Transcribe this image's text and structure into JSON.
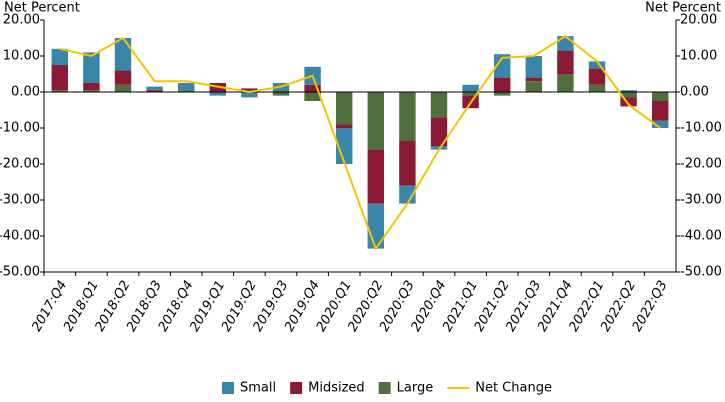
{
  "chart_data": {
    "type": "stacked_bar_line",
    "y_label": "Net Percent",
    "y2_label": "Net Percent",
    "categories": [
      "2017:Q4",
      "2018:Q1",
      "2018:Q2",
      "2018:Q3",
      "2018:Q4",
      "2019:Q1",
      "2019:Q2",
      "2019:Q3",
      "2019:Q4",
      "2020:Q1",
      "2020:Q2",
      "2020:Q3",
      "2020:Q4",
      "2021:Q1",
      "2021:Q2",
      "2021:Q3",
      "2021:Q4",
      "2022:Q1",
      "2022:Q2",
      "2022:Q3"
    ],
    "series": [
      {
        "name": "Small",
        "color": "#3a86a8",
        "type": "bar",
        "values": [
          4.5,
          8.5,
          9,
          1,
          2,
          -1,
          -1.5,
          2.5,
          5,
          -10,
          -12.5,
          -5,
          -1,
          2,
          6.5,
          6,
          4,
          2,
          0.5,
          -2
        ]
      },
      {
        "name": "Midsized",
        "color": "#8b1a34",
        "type": "bar",
        "values": [
          7,
          2,
          4,
          0.5,
          0,
          2.5,
          1,
          0,
          2,
          -1,
          -15,
          -12.5,
          -8,
          -3.5,
          4,
          1,
          6.5,
          4.5,
          -2.5,
          -5.5
        ]
      },
      {
        "name": "Large",
        "color": "#4f6f3f",
        "type": "bar",
        "values": [
          0.5,
          0.5,
          2,
          0,
          0.5,
          0,
          0,
          -1,
          -2.5,
          -9,
          -16,
          -13.5,
          -7,
          -1,
          -1,
          3,
          5,
          2,
          -1.5,
          -2.5
        ]
      },
      {
        "name": "Net Change",
        "color": "#f5c400",
        "type": "line",
        "values": [
          12,
          10,
          15,
          3,
          3,
          1.5,
          0,
          1.5,
          4.5,
          -19.5,
          -43.5,
          -31,
          -16,
          -3,
          9.5,
          10,
          15.5,
          8.5,
          -3.5,
          -10
        ]
      }
    ],
    "ylim": [
      -50,
      20
    ],
    "yticks": [
      {
        "value": -50,
        "label": "-50.00"
      },
      {
        "value": -40,
        "label": "-40.00"
      },
      {
        "value": -30,
        "label": "-30.00"
      },
      {
        "value": -20,
        "label": "-20.00"
      },
      {
        "value": -10,
        "label": "-10.00"
      },
      {
        "value": 0,
        "label": "0.00"
      },
      {
        "value": 10,
        "label": "10.00"
      },
      {
        "value": 20,
        "label": "20.00"
      }
    ],
    "y2lim": [
      -50,
      20
    ],
    "y2ticks": [
      {
        "value": -50,
        "label": "-50.00"
      },
      {
        "value": -40,
        "label": "-40.00"
      },
      {
        "value": -30,
        "label": "-30.00"
      },
      {
        "value": -20,
        "label": "-20.00"
      },
      {
        "value": -10,
        "label": "-10.00"
      },
      {
        "value": 0,
        "label": "0.00"
      },
      {
        "value": 10,
        "label": "10.00"
      },
      {
        "value": 20,
        "label": "20.00"
      }
    ]
  }
}
